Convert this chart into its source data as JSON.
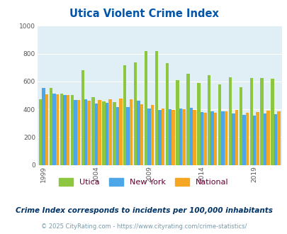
{
  "title": "Utica Violent Crime Index",
  "years": [
    1999,
    2000,
    2001,
    2002,
    2003,
    2004,
    2005,
    2006,
    2007,
    2008,
    2009,
    2010,
    2011,
    2012,
    2013,
    2014,
    2015,
    2016,
    2017,
    2018,
    2019,
    2020,
    2021
  ],
  "utica": [
    470,
    555,
    515,
    500,
    680,
    485,
    455,
    450,
    715,
    735,
    820,
    820,
    730,
    610,
    655,
    590,
    645,
    580,
    630,
    560,
    625,
    625,
    620
  ],
  "new_york": [
    555,
    515,
    500,
    465,
    470,
    440,
    445,
    415,
    415,
    460,
    405,
    395,
    400,
    405,
    410,
    380,
    385,
    385,
    370,
    360,
    355,
    370,
    365
  ],
  "national": [
    510,
    505,
    500,
    465,
    460,
    465,
    470,
    475,
    470,
    435,
    430,
    405,
    395,
    400,
    395,
    375,
    375,
    385,
    395,
    375,
    380,
    390,
    385
  ],
  "utica_color": "#8dc63f",
  "ny_color": "#4da6e8",
  "nat_color": "#f5a623",
  "bg_color": "#e0eff5",
  "title_color": "#0055aa",
  "legend_label_color": "#660033",
  "subtitle_color": "#003366",
  "footer_color": "#7799aa",
  "ylim": [
    0,
    1000
  ],
  "yticks": [
    0,
    200,
    400,
    600,
    800,
    1000
  ],
  "x_tick_years": [
    1999,
    2004,
    2009,
    2014,
    2019
  ],
  "subtitle": "Crime Index corresponds to incidents per 100,000 inhabitants",
  "footer": "© 2025 CityRating.com - https://www.cityrating.com/crime-statistics/",
  "bar_width": 0.3
}
